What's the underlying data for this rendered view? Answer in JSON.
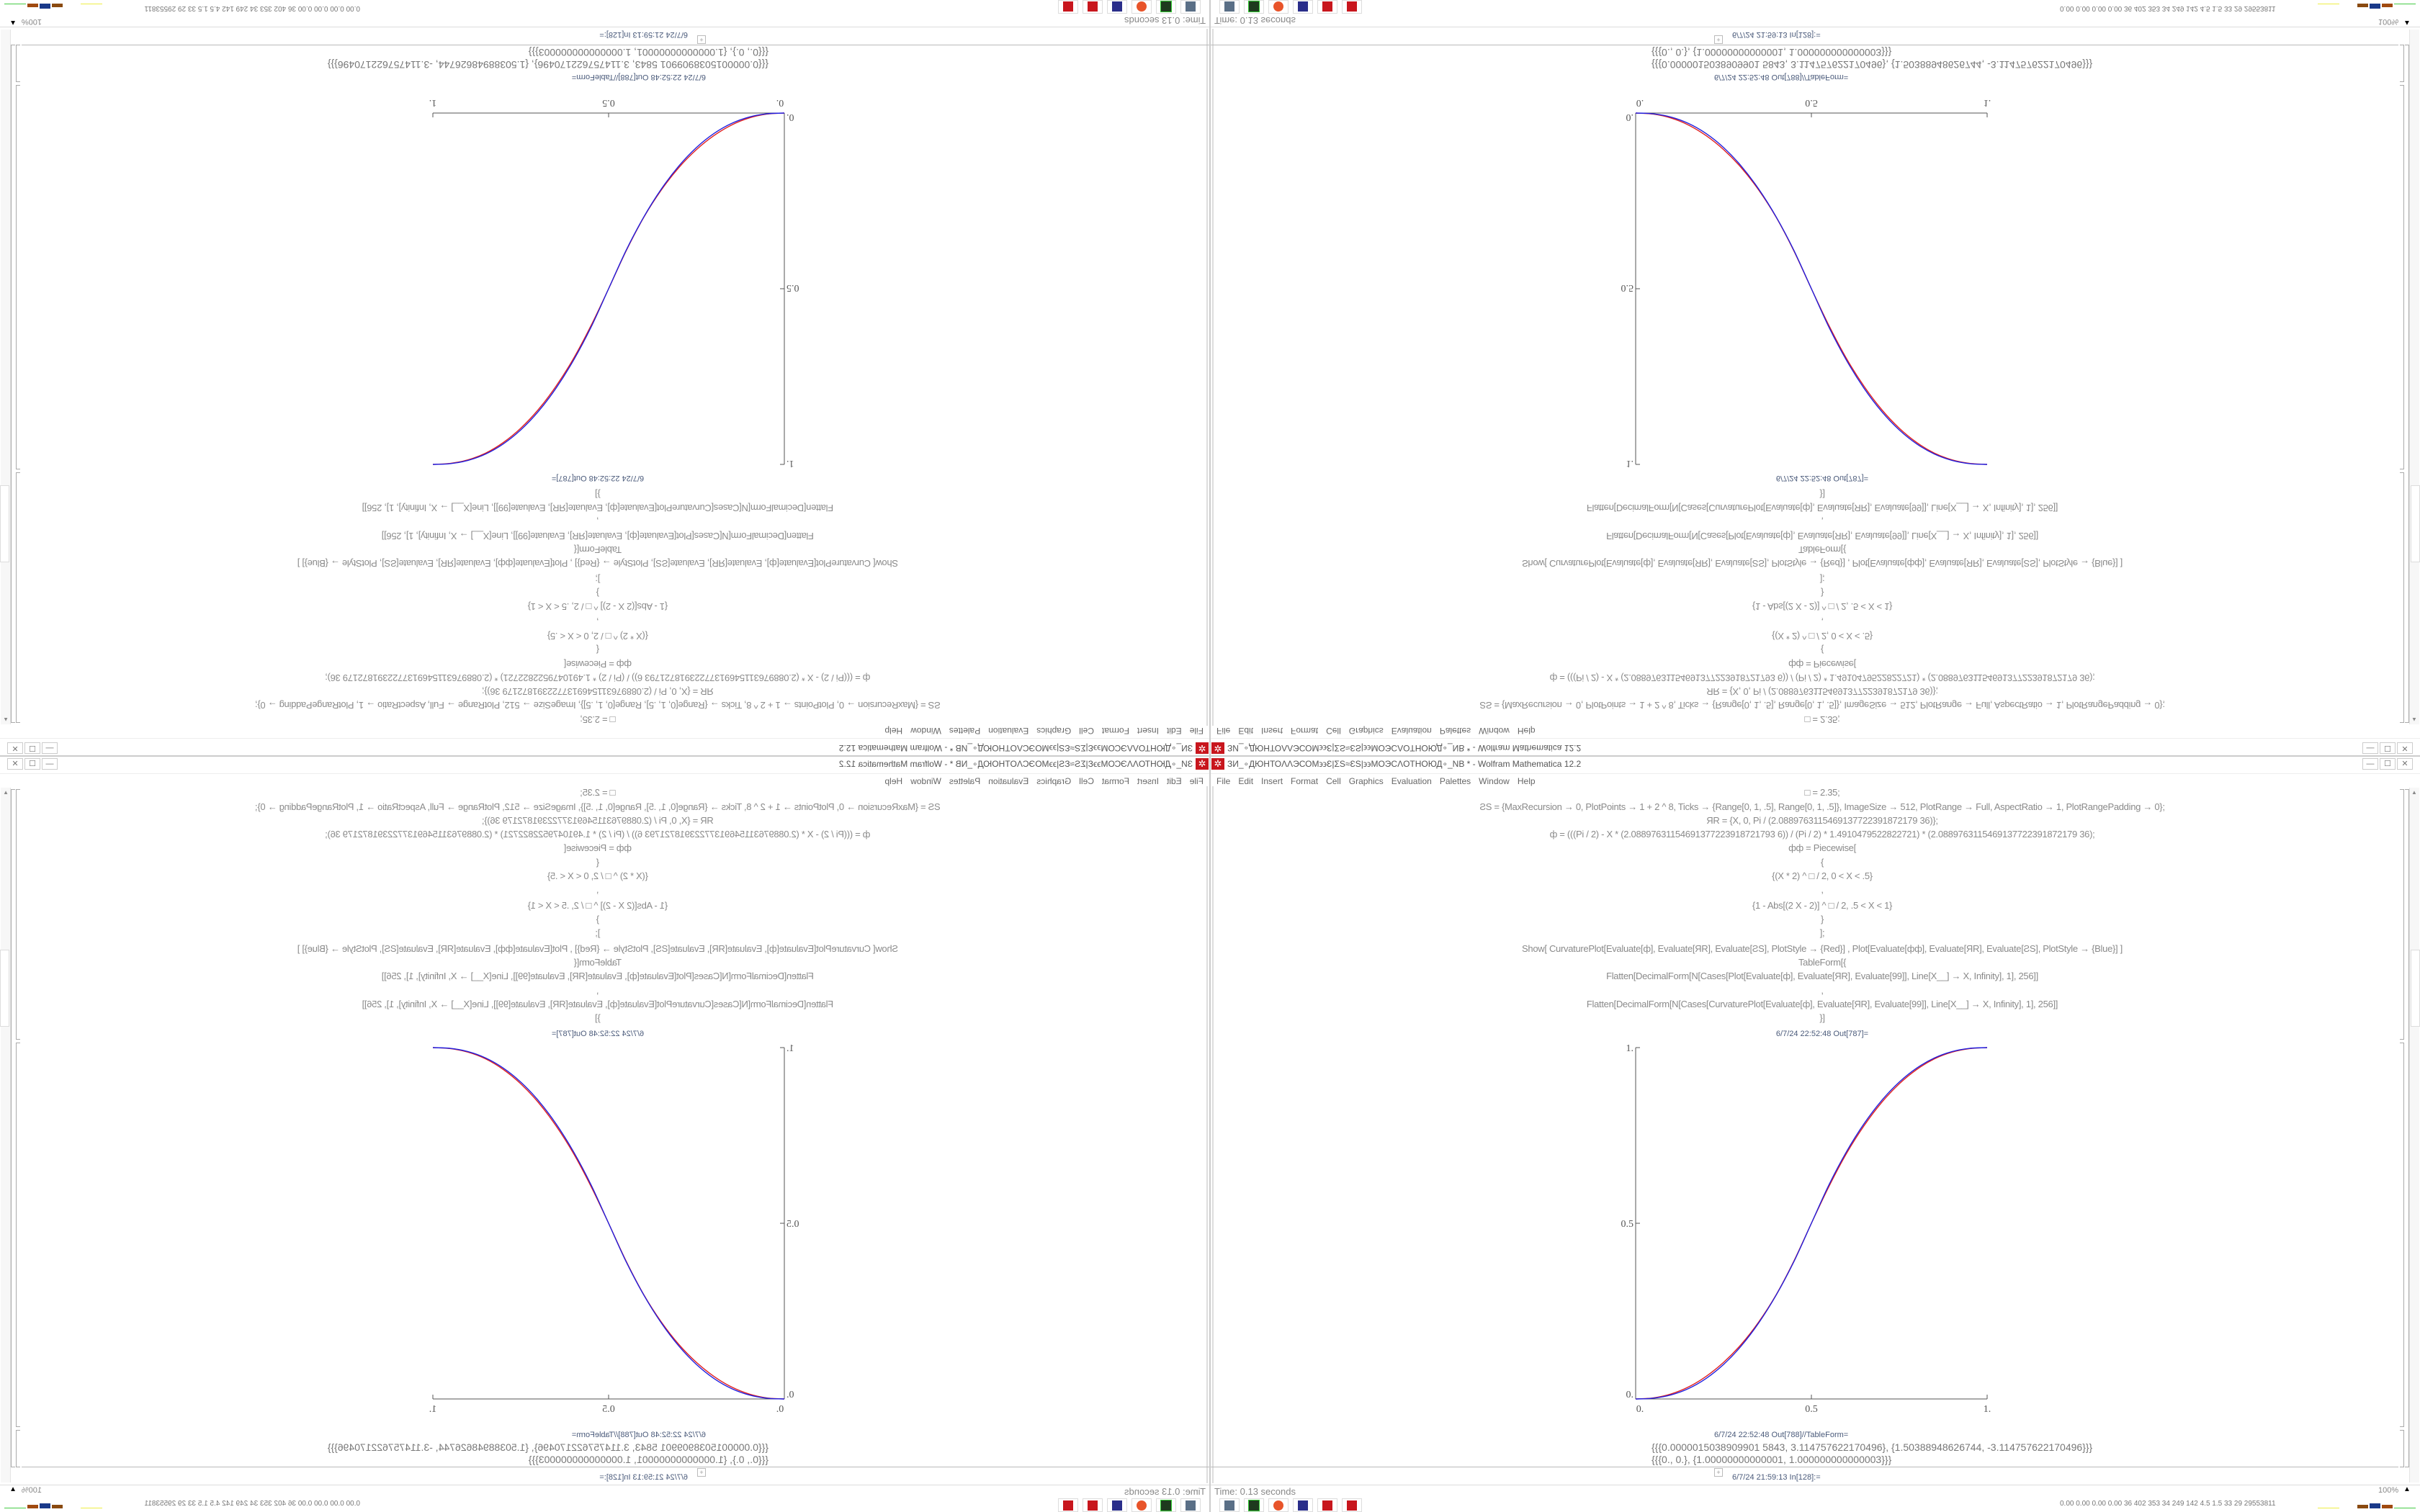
{
  "window": {
    "title": "ЗИ_∘ДЮНТОΛΛЭСОМ϶϶Ɛ|ΣS≈ƐS|϶϶МОЭСΛОТНОЮД∘_NB * - Wolfram Mathematica 12.2",
    "menu": [
      "File",
      "Edit",
      "Insert",
      "Format",
      "Cell",
      "Graphics",
      "Evaluation",
      "Palettes",
      "Window",
      "Help"
    ],
    "buttons": {
      "minimize": "—",
      "maximize": "☐",
      "close": "✕"
    }
  },
  "notebook": {
    "input_lines": [
      "□ = 2.35;",
      "ƧS = {MaxRecursion → 0, PlotPoints → 1 + 2 ^ 8, Ticks → {Range[0, 1, .5], Range[0, 1, .5]}, ImageSize → 512, PlotRange → Full, AspectRatio → 1, PlotRangePadding → 0};",
      "ЯR = {X, 0, Pi / (2.0889763115469137722391872179 36)};",
      "ф = (((Pi / 2) - X * (2.08897631154691377223918721793 6)) / (Pi / 2) * 1.4910479522822721) * (2.0889763115469137722391872179 36);",
      "фф = Piecewise[",
      "{",
      "{(X * 2) ^ □ / 2, 0 < X < .5}",
      ",",
      "{1 - Abs[(2 X - 2)] ^ □ / 2, .5 < X < 1}",
      "}",
      "];",
      "Show[   CurvaturePlot[Evaluate[ф], Evaluate[ЯR], Evaluate[ƧS], PlotStyle → {Red}]   ,   Plot[Evaluate[фф], Evaluate[ЯR], Evaluate[ƧS],  PlotStyle → {Blue}] ]",
      "TableForm[{",
      "Flatten[DecimalForm[N[Cases[Plot[Evaluate[ф], Evaluate[ЯR], Evaluate[99]], Line[X__] → X, Infinity], 1], 256]]",
      ",",
      "Flatten[DecimalForm[N[Cases[CurvaturePlot[Evaluate[ф], Evaluate[ЯR], Evaluate[99]], Line[X__] → X, Infinity], 1], 256]]",
      "}]"
    ],
    "out787_label": "6/7/24 22:52:48 Out[787]=",
    "out788_label": "6/7/24 22:52:48 Out[788]//TableForm=",
    "out788_rows": [
      "{{{0.0000015038909901 5843, 3.114757622170496}, {1.50388948626744, -3.114757622170496}}}",
      "{{{0., 0.}, {1.00000000000001, 1.000000000000003}}}"
    ],
    "in128_label": "6/7/24 21:59:13 In[128]:="
  },
  "status": {
    "time": "Time: 0.13 seconds",
    "zoom": "100%"
  },
  "taskbar": {
    "icons": [
      "display-settings-icon",
      "terminal-icon",
      "firefox-icon",
      "floppy-64-icon",
      "mathematica-icon",
      "mathematica-icon"
    ],
    "tray_text": "0.00 0.00 0.00 0.00  36   402  353   34   249  142   4.5   1.5   33   29  29553811"
  },
  "chart_data": {
    "type": "line",
    "xlim": [
      0,
      1
    ],
    "ylim": [
      0,
      1
    ],
    "xticks": [
      "0.",
      "0.5",
      "1."
    ],
    "yticks": [
      "0.",
      "0.5",
      "1."
    ],
    "grid": false,
    "x": [
      0,
      0.05,
      0.1,
      0.15,
      0.2,
      0.25,
      0.3,
      0.35,
      0.4,
      0.45,
      0.5,
      0.55,
      0.6,
      0.65,
      0.7,
      0.75,
      0.8,
      0.85,
      0.9,
      0.95,
      1
    ],
    "series": [
      {
        "color": "#e02020",
        "values": [
          0,
          0.003,
          0.014,
          0.034,
          0.064,
          0.104,
          0.155,
          0.219,
          0.297,
          0.392,
          0.5,
          0.605,
          0.699,
          0.778,
          0.844,
          0.897,
          0.938,
          0.968,
          0.987,
          0.997,
          1
        ]
      },
      {
        "color": "#2020e0",
        "values": [
          0,
          0.0022,
          0.0114,
          0.0295,
          0.0581,
          0.0981,
          0.1505,
          0.2163,
          0.296,
          0.3904,
          0.5,
          0.6096,
          0.704,
          0.7837,
          0.8495,
          0.9019,
          0.9419,
          0.9705,
          0.9886,
          0.9978,
          1
        ]
      }
    ]
  }
}
